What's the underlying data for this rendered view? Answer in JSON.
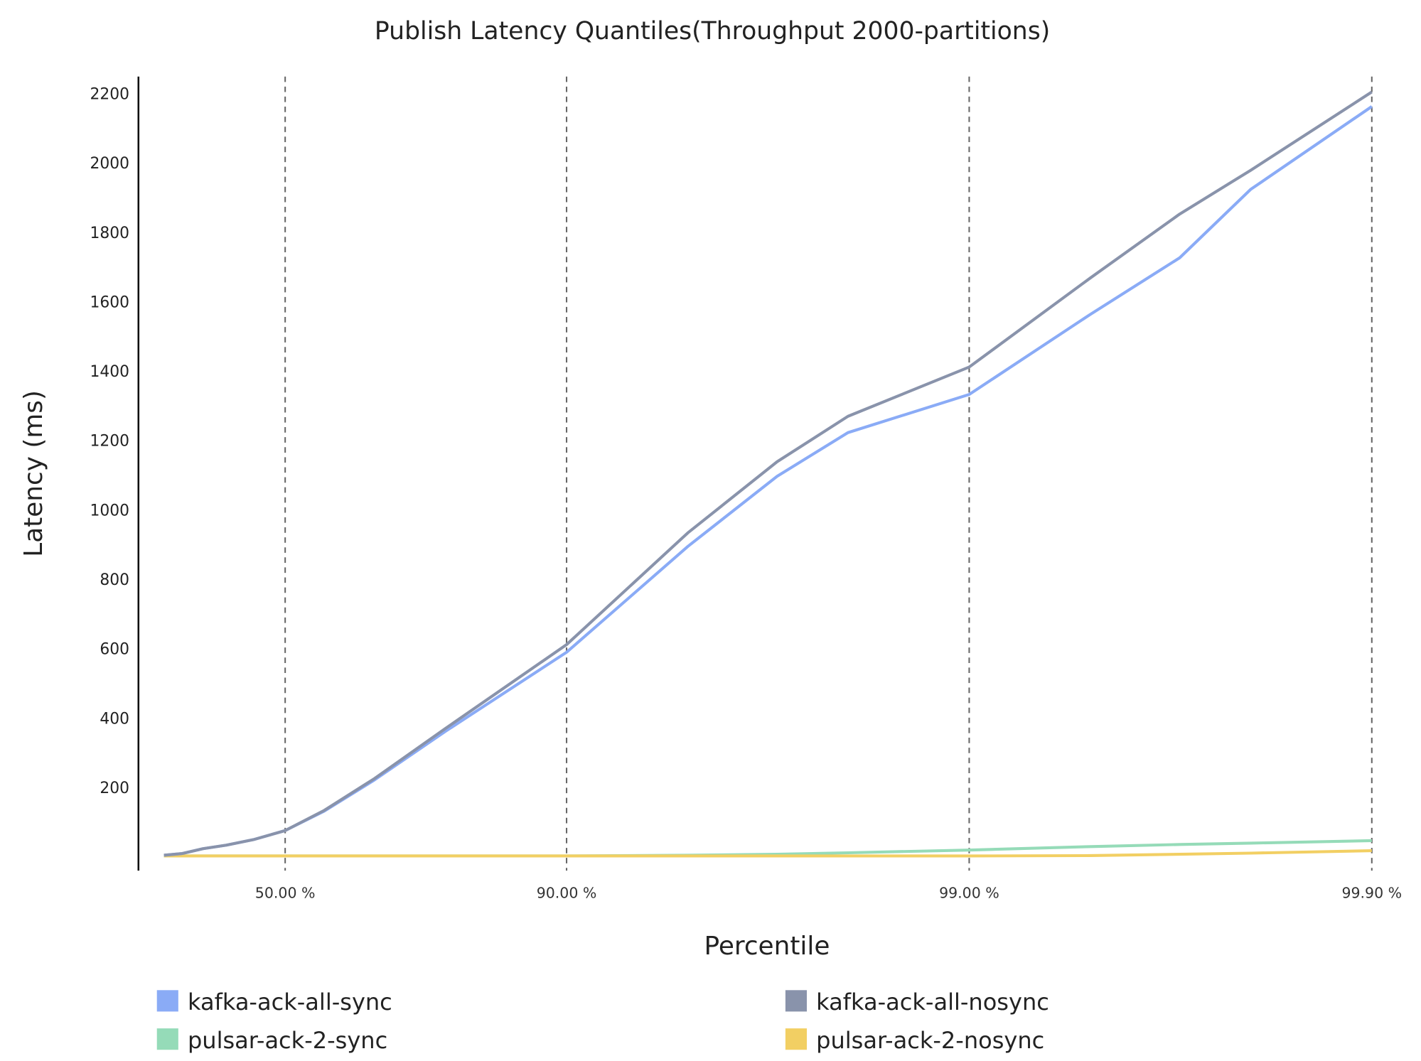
{
  "chart_data": {
    "type": "line",
    "title": "Publish Latency Quantiles(Throughput 2000-partitions)",
    "xlabel": "Percentile",
    "ylabel": "Latency (ms)",
    "x_scale": "log of 1/(1-percentile)",
    "x_ticks": [
      {
        "value": 50,
        "label": "50.00 %"
      },
      {
        "value": 90,
        "label": "90.00 %"
      },
      {
        "value": 99,
        "label": "99.00 %"
      },
      {
        "value": 99.9,
        "label": "99.90 %"
      }
    ],
    "xlim": [
      0,
      99.9
    ],
    "ylim": [
      -30,
      2250
    ],
    "y_ticks": [
      200,
      400,
      600,
      800,
      1000,
      1200,
      1400,
      1600,
      1800,
      2000,
      2200
    ],
    "grid": "vertical dashed lines at x ticks",
    "legend_placement": "bottom",
    "x": [
      0,
      10,
      20,
      30,
      40,
      50,
      60,
      70,
      80,
      90,
      95,
      97,
      98,
      99,
      99.5,
      99.7,
      99.8,
      99.9
    ],
    "series": [
      {
        "name": "kafka-ack-all-sync",
        "color": "#8aabf6",
        "values": [
          5,
          10,
          24,
          34,
          50,
          76,
          132,
          222,
          362,
          590,
          895,
          1097,
          1223,
          1333,
          1564,
          1727,
          1924,
          2163
        ]
      },
      {
        "name": "kafka-ack-all-nosync",
        "color": "#8993ab",
        "values": [
          5,
          10,
          24,
          34,
          50,
          76,
          134,
          226,
          370,
          612,
          934,
          1139,
          1270,
          1412,
          1669,
          1853,
          1979,
          2205
        ]
      },
      {
        "name": "pulsar-ack-2-sync",
        "color": "#95dbb8",
        "values": [
          3,
          3,
          3,
          3,
          3,
          3,
          3,
          3,
          3,
          3,
          5,
          8,
          12,
          20,
          30,
          36,
          40,
          47
        ]
      },
      {
        "name": "pulsar-ack-2-nosync",
        "color": "#f2cf63",
        "values": [
          3,
          3,
          3,
          3,
          3,
          3,
          3,
          3,
          3,
          3,
          3,
          3,
          3,
          3,
          4,
          8,
          11,
          18
        ]
      }
    ]
  }
}
